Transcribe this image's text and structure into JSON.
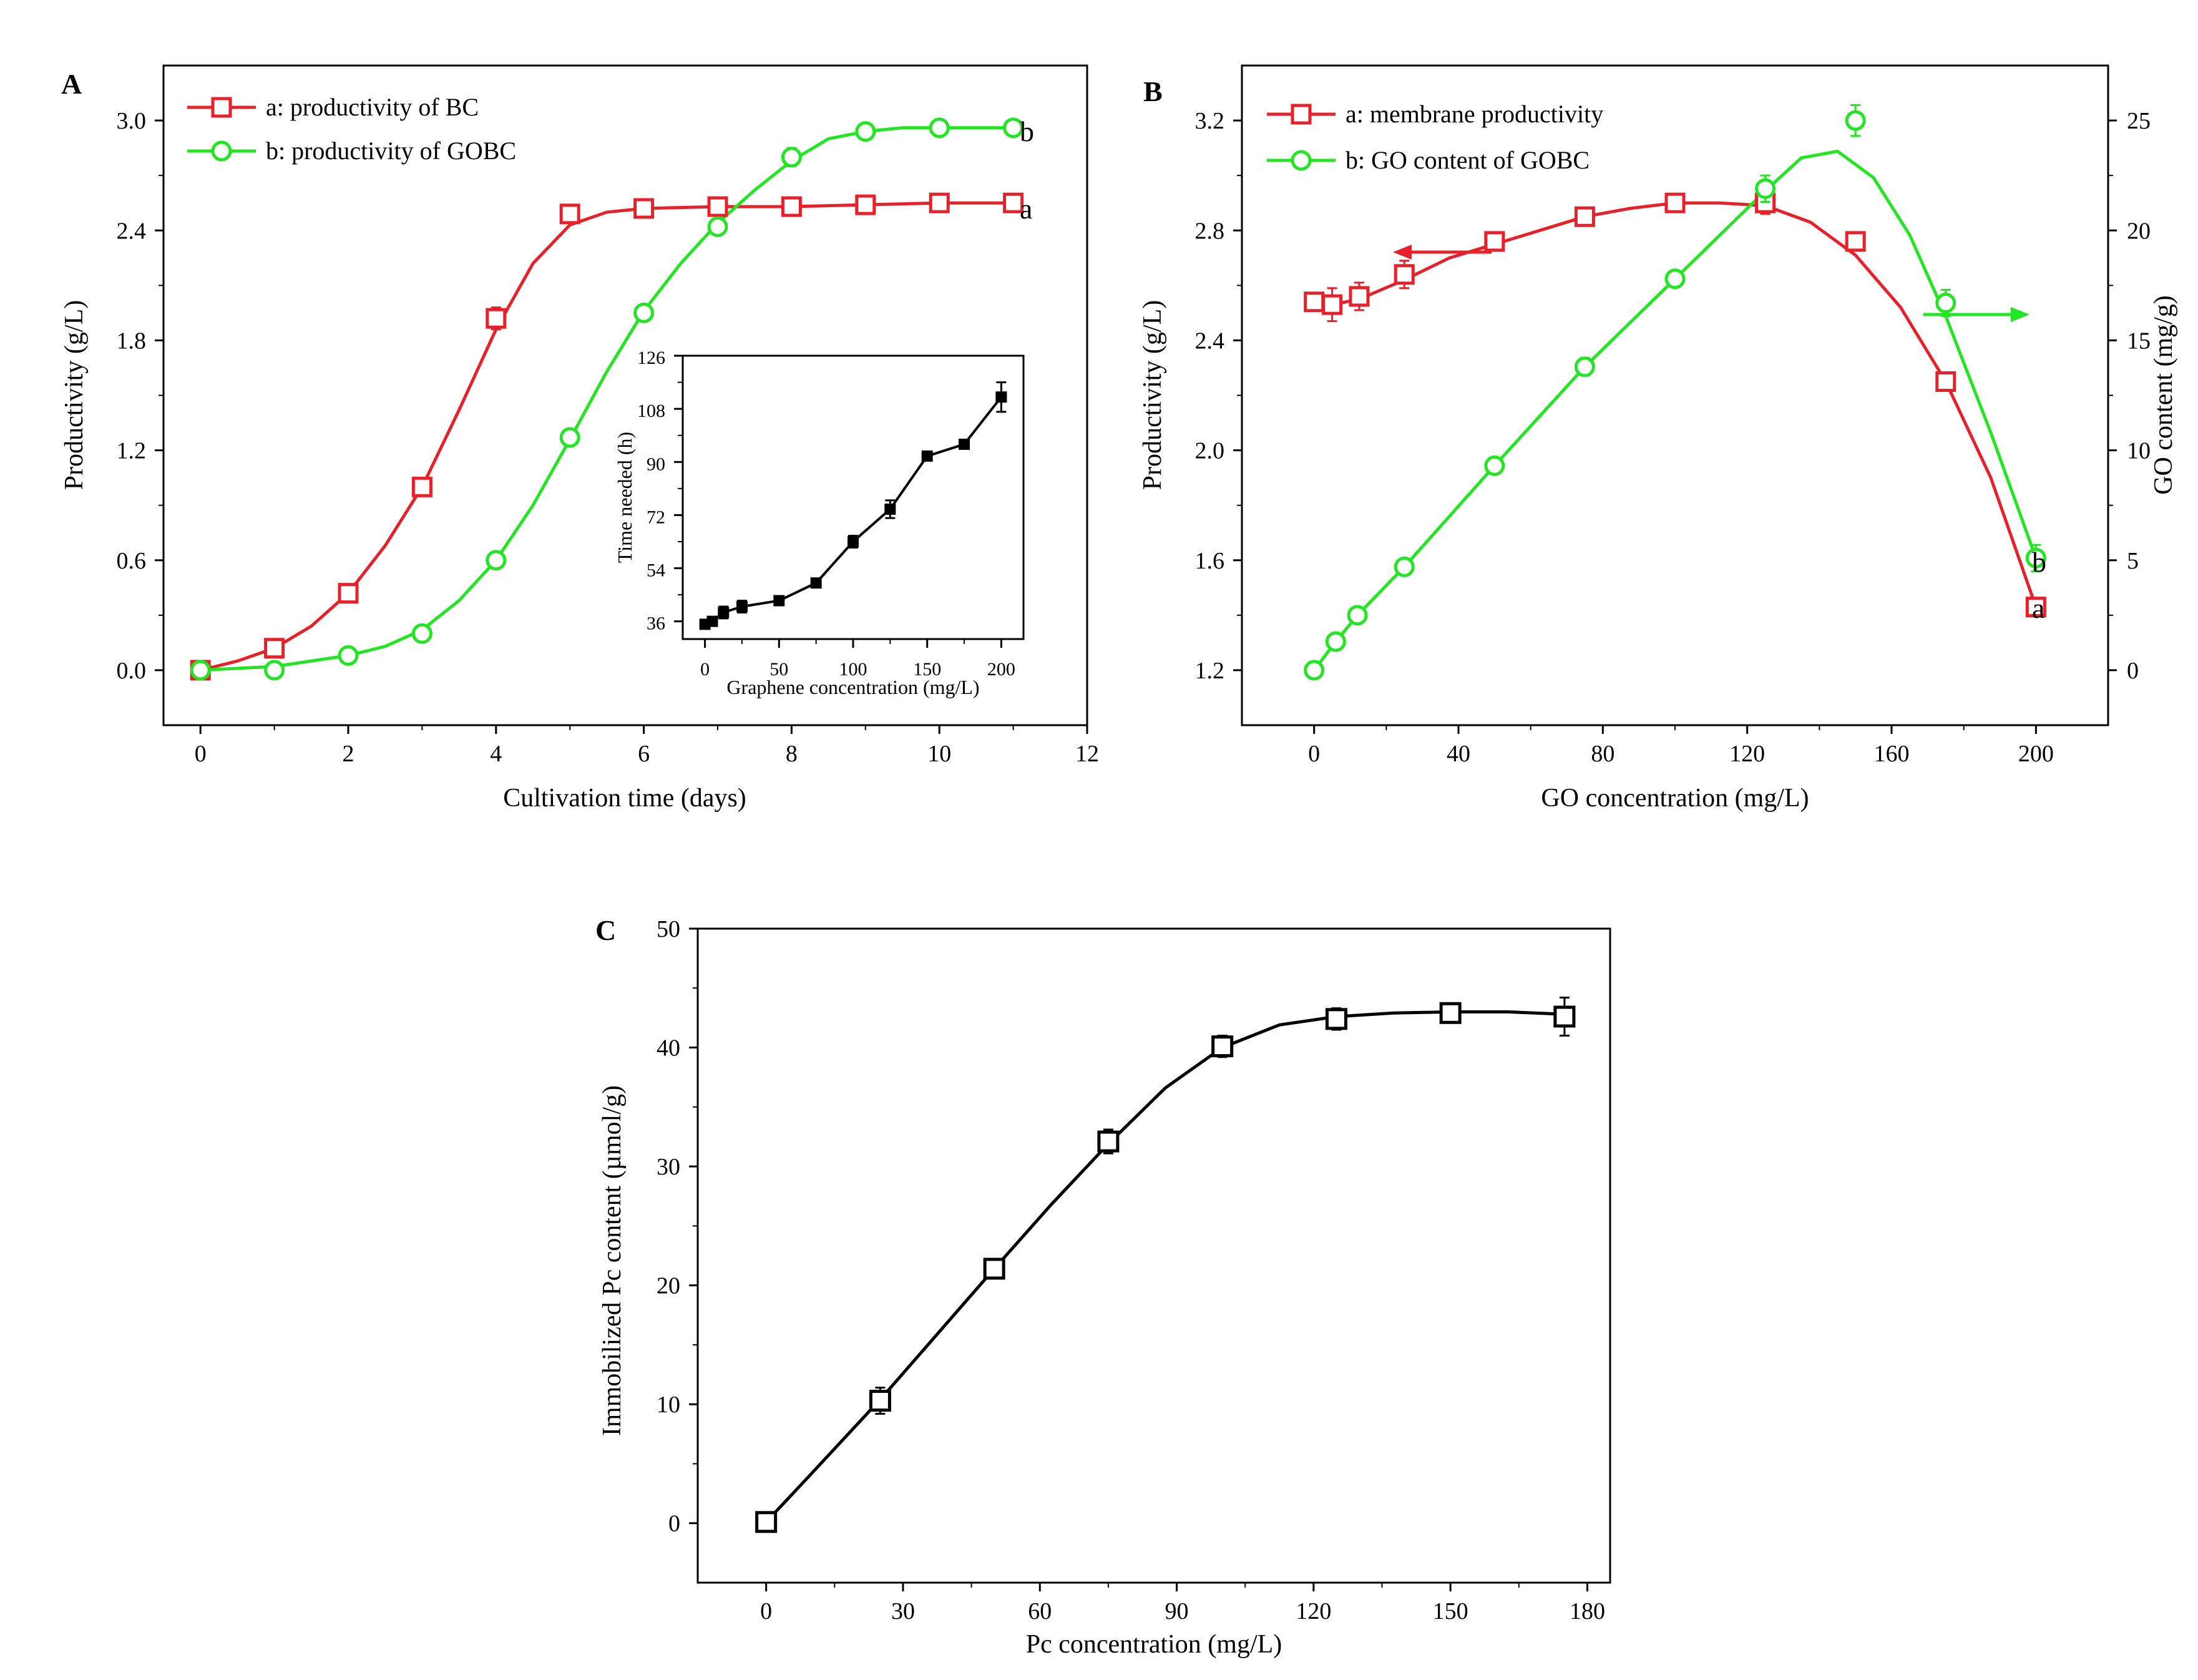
{
  "colors": {
    "red": "#e8202a",
    "green": "#22e622",
    "black": "#000000"
  },
  "chart_data": [
    {
      "panel": "A",
      "type": "line",
      "xlabel": "Cultivation time (days)",
      "ylabel": "Productivity (g/L)",
      "xlim": [
        -0.5,
        12
      ],
      "ylim": [
        -0.3,
        3.3
      ],
      "xticks": [
        0,
        2,
        4,
        6,
        8,
        10,
        12
      ],
      "yticks": [
        0.0,
        0.6,
        1.2,
        1.8,
        2.4,
        3.0
      ],
      "ytick_labels": [
        "0.0",
        "0.6",
        "1.2",
        "1.8",
        "2.4",
        "3.0"
      ],
      "legend_position": "top-left",
      "series": [
        {
          "name": "a: productivity of BC",
          "end_label": "a",
          "color": "red",
          "x": [
            0,
            1,
            2,
            3,
            4,
            5,
            6,
            7,
            8,
            9,
            10,
            11
          ],
          "y": [
            0.0,
            0.12,
            0.42,
            1.0,
            1.92,
            2.49,
            2.52,
            2.53,
            2.53,
            2.54,
            2.55,
            2.55
          ],
          "err": [
            0,
            0,
            0.03,
            0.05,
            0.06,
            0,
            0,
            0,
            0,
            0,
            0,
            0
          ],
          "curve_x": [
            0,
            0.5,
            1,
            1.5,
            2,
            2.5,
            3,
            3.5,
            4,
            4.5,
            5,
            5.5,
            6,
            7,
            8,
            9,
            10,
            11
          ],
          "curve_y": [
            0.0,
            0.05,
            0.12,
            0.24,
            0.42,
            0.68,
            1.0,
            1.42,
            1.86,
            2.22,
            2.43,
            2.5,
            2.52,
            2.53,
            2.53,
            2.54,
            2.55,
            2.55
          ]
        },
        {
          "name": "b: productivity of GOBC",
          "end_label": "b",
          "color": "green",
          "x": [
            0,
            1,
            2,
            3,
            4,
            5,
            6,
            7,
            8,
            9,
            10,
            11
          ],
          "y": [
            0.0,
            0.0,
            0.08,
            0.2,
            0.6,
            1.27,
            1.95,
            2.42,
            2.8,
            2.94,
            2.96,
            2.96
          ],
          "err": [
            0,
            0,
            0,
            0,
            0,
            0,
            0.04,
            0,
            0.05,
            0,
            0,
            0
          ],
          "curve_x": [
            0,
            1,
            2,
            2.5,
            3,
            3.5,
            4,
            4.5,
            5,
            5.5,
            6,
            6.5,
            7,
            7.5,
            8,
            8.5,
            9,
            9.5,
            10,
            11
          ],
          "curve_y": [
            0.0,
            0.02,
            0.08,
            0.13,
            0.22,
            0.38,
            0.6,
            0.9,
            1.26,
            1.63,
            1.96,
            2.22,
            2.44,
            2.62,
            2.78,
            2.9,
            2.94,
            2.96,
            2.96,
            2.96
          ]
        }
      ],
      "inset": {
        "type": "line",
        "xlabel": "Graphene concentration (mg/L)",
        "ylabel": "Time needed (h)",
        "xlim": [
          -15,
          215
        ],
        "ylim": [
          30,
          126
        ],
        "xticks": [
          0,
          50,
          100,
          150,
          200
        ],
        "yticks": [
          36,
          54,
          72,
          90,
          108,
          126
        ],
        "x": [
          0,
          5,
          12.5,
          25,
          50,
          75,
          100,
          125,
          150,
          175,
          200
        ],
        "y": [
          35,
          36,
          39,
          41,
          43,
          49,
          63,
          74,
          92,
          96,
          112
        ],
        "err": [
          0,
          1,
          2,
          2,
          1,
          1,
          2,
          3,
          1,
          1,
          5
        ]
      }
    },
    {
      "panel": "B",
      "type": "line",
      "xlabel": "GO concentration (mg/L)",
      "ylabel": "Productivity (g/L)",
      "ylabel_right": "GO content (mg/g)",
      "xlim": [
        -20,
        220
      ],
      "ylim": [
        1.0,
        3.4
      ],
      "ylim_right": [
        -2.5,
        27.5
      ],
      "xticks": [
        0,
        40,
        80,
        120,
        160,
        200
      ],
      "yticks": [
        1.2,
        1.6,
        2.0,
        2.4,
        2.8,
        3.2
      ],
      "ytick_labels": [
        "1.2",
        "1.6",
        "2.0",
        "2.4",
        "2.8",
        "3.2"
      ],
      "yticks_right": [
        0,
        5,
        10,
        15,
        20,
        25
      ],
      "legend_position": "top-left",
      "series": [
        {
          "name": "a: membrane productivity",
          "end_label": "a",
          "color": "red",
          "axis": "left",
          "x": [
            0,
            5,
            12.5,
            25,
            50,
            75,
            100,
            125,
            150,
            175,
            200
          ],
          "y": [
            2.54,
            2.53,
            2.56,
            2.64,
            2.76,
            2.85,
            2.9,
            2.9,
            2.76,
            2.25,
            1.43
          ],
          "err": [
            0.02,
            0.06,
            0.05,
            0.05,
            0.02,
            0,
            0,
            0.04,
            0.02,
            0,
            0
          ],
          "curve_x": [
            0,
            5,
            12.5,
            25,
            37.5,
            50,
            62.5,
            75,
            87.5,
            100,
            112.5,
            125,
            137.5,
            150,
            162.5,
            175,
            187.5,
            200
          ],
          "curve_y": [
            2.54,
            2.53,
            2.55,
            2.62,
            2.7,
            2.75,
            2.8,
            2.85,
            2.88,
            2.9,
            2.9,
            2.89,
            2.83,
            2.71,
            2.52,
            2.25,
            1.9,
            1.43
          ]
        },
        {
          "name": "b: GO content of GOBC",
          "end_label": "b",
          "color": "green",
          "axis": "right",
          "x": [
            0,
            6,
            12,
            25,
            50,
            75,
            100,
            125,
            150,
            175,
            200
          ],
          "y": [
            0,
            1.3,
            2.5,
            4.7,
            9.3,
            13.8,
            17.8,
            21.9,
            25,
            16.7,
            5.1
          ],
          "err": [
            0,
            0.3,
            0.3,
            0,
            0,
            0.4,
            0,
            0.6,
            0.7,
            0.6,
            0.6
          ],
          "curve_x": [
            0,
            6,
            12,
            25,
            50,
            75,
            100,
            125,
            135,
            145,
            155,
            165,
            175,
            187.5,
            200
          ],
          "curve_y": [
            0,
            1.3,
            2.5,
            4.7,
            9.3,
            13.8,
            17.8,
            21.8,
            23.3,
            23.6,
            22.4,
            19.8,
            16.1,
            10.8,
            5.1
          ]
        }
      ]
    },
    {
      "panel": "C",
      "type": "line",
      "xlabel": "Pc concentration (mg/L)",
      "ylabel": "Immobilized Pc content (µmol/g)",
      "xlim": [
        -15,
        185
      ],
      "ylim": [
        -5,
        50
      ],
      "xticks": [
        0,
        30,
        60,
        90,
        120,
        150,
        180
      ],
      "yticks": [
        0,
        10,
        20,
        30,
        40,
        50
      ],
      "series": [
        {
          "name": "Immobilized Pc content",
          "color": "black",
          "x": [
            0,
            25,
            50,
            75,
            100,
            125,
            150,
            175
          ],
          "y": [
            0.1,
            10.3,
            21.4,
            32.1,
            40.1,
            42.4,
            42.9,
            42.6
          ],
          "err": [
            0,
            1.1,
            0.5,
            1.0,
            0.9,
            0.9,
            0.5,
            1.6
          ],
          "curve_x": [
            0,
            10,
            25,
            37.5,
            50,
            62.5,
            75,
            87.5,
            100,
            112.5,
            125,
            137.5,
            150,
            162.5,
            175
          ],
          "curve_y": [
            0.1,
            4.2,
            10.4,
            15.9,
            21.4,
            26.8,
            31.9,
            36.6,
            40.0,
            41.9,
            42.6,
            42.9,
            43.0,
            43.0,
            42.8
          ]
        }
      ]
    }
  ]
}
